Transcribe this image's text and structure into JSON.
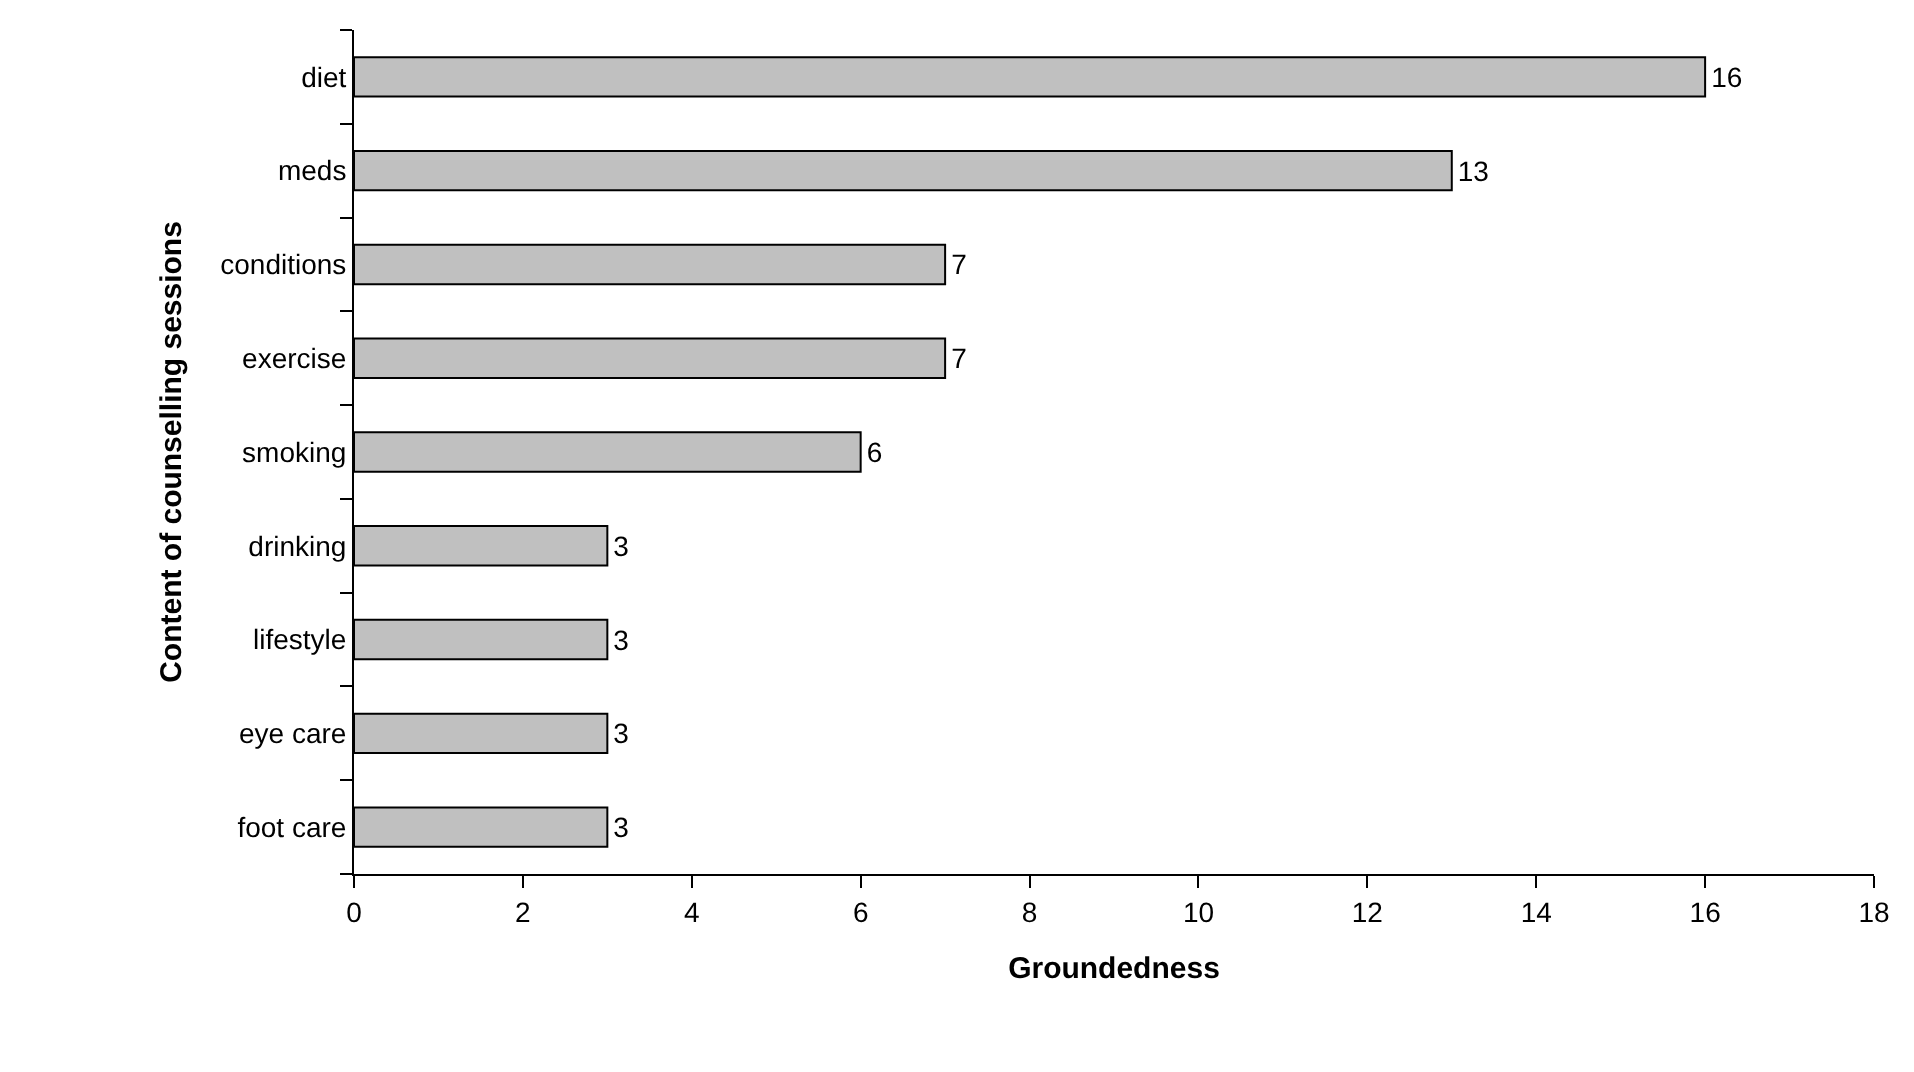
{
  "chart_data": {
    "type": "bar",
    "orientation": "horizontal",
    "xlabel": "Groundedness",
    "ylabel": "Content of counselling sessions",
    "categories": [
      "diet",
      "meds",
      "conditions",
      "exercise",
      "smoking",
      "drinking",
      "lifestyle",
      "eye care",
      "foot care"
    ],
    "values": [
      16,
      13,
      7,
      7,
      6,
      3,
      3,
      3,
      3
    ],
    "color": "#c0c0c0",
    "xlim": [
      0,
      18
    ],
    "xticks": [
      0,
      2,
      4,
      6,
      8,
      10,
      12,
      14,
      16,
      18
    ],
    "data_labels": true,
    "grid": false
  }
}
